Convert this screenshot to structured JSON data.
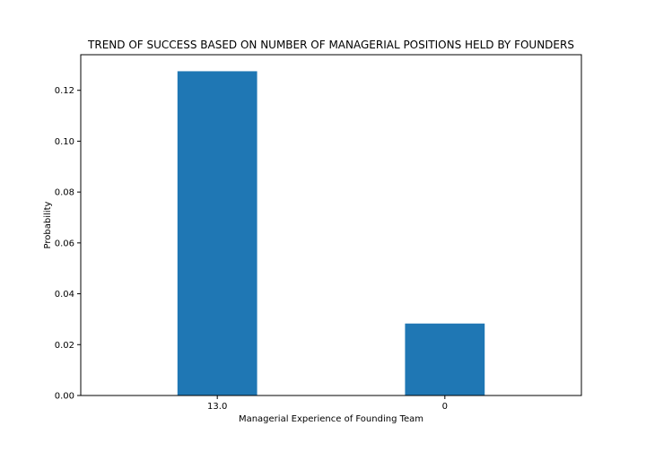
{
  "chart_data": {
    "type": "bar",
    "title": "TREND OF SUCCESS BASED ON NUMBER OF MANAGERIAL POSITIONS HELD BY FOUNDERS",
    "xlabel": "Managerial Experience of Founding Team",
    "ylabel": "Probability",
    "categories": [
      "13.0",
      "0"
    ],
    "values": [
      0.1275,
      0.0283
    ],
    "ylim": [
      0,
      0.134
    ],
    "yticks": [
      0.0,
      0.02,
      0.04,
      0.06,
      0.08,
      0.1,
      0.12
    ],
    "ytick_labels": [
      "0.00",
      "0.02",
      "0.04",
      "0.06",
      "0.08",
      "0.10",
      "0.12"
    ],
    "bar_color": "#1f77b4",
    "grid": false,
    "legend": "none"
  }
}
